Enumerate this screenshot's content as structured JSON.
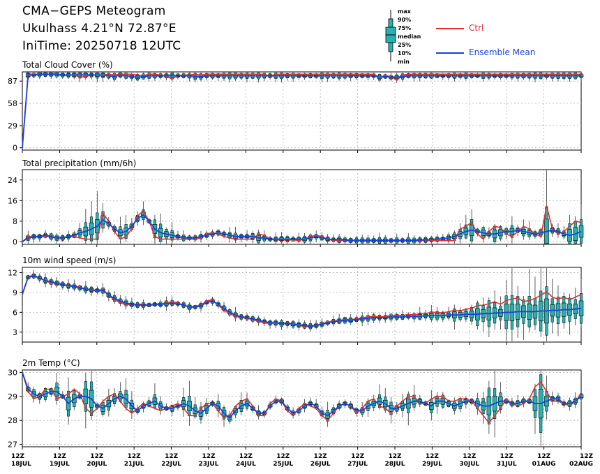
{
  "header": {
    "title": "CMA−GEPS Meteogram",
    "location": "Ukulhass  4.21°N  72.87°E",
    "init": "IniTime: 20250718 12UTC"
  },
  "legend": {
    "box_labels": [
      "max",
      "90%",
      "75%",
      "median",
      "25%",
      "10%",
      "min"
    ],
    "ctrl_label": "Ctrl",
    "mean_label": "Ensemble Mean",
    "ctrl_color": "#e03030",
    "mean_color": "#1a3fe0",
    "box_color": "#2ab0b0"
  },
  "chart_data": [
    {
      "type": "line",
      "title": "Total Cloud Cover (%)",
      "ylim": [
        -3,
        99
      ],
      "yticks": [
        "0",
        "29",
        "58",
        "87"
      ],
      "ytick_values": [
        0,
        29,
        58,
        87
      ],
      "x_ticks": [
        {
          "hour": "12Z",
          "date": "18JUL"
        },
        {
          "hour": "12Z",
          "date": "19JUL"
        },
        {
          "hour": "12Z",
          "date": "20JUL"
        },
        {
          "hour": "12Z",
          "date": "21JUL"
        },
        {
          "hour": "12Z",
          "date": "22JUL"
        },
        {
          "hour": "12Z",
          "date": "23JUL"
        },
        {
          "hour": "12Z",
          "date": "24JUL"
        },
        {
          "hour": "12Z",
          "date": "25JUL"
        },
        {
          "hour": "12Z",
          "date": "26JUL"
        },
        {
          "hour": "12Z",
          "date": "27JUL"
        },
        {
          "hour": "12Z",
          "date": "28JUL"
        },
        {
          "hour": "12Z",
          "date": "29JUL"
        },
        {
          "hour": "12Z",
          "date": "30JUL"
        },
        {
          "hour": "12Z",
          "date": "31JUL"
        },
        {
          "hour": "12Z",
          "date": "01AUG"
        },
        {
          "hour": "12Z",
          "date": "02AUG"
        }
      ],
      "series": [
        {
          "name": "Ensemble Mean",
          "values": [
            0,
            95,
            95,
            96,
            96,
            96,
            96,
            95,
            95,
            95,
            95,
            95,
            95,
            95,
            95,
            94,
            93,
            95,
            94,
            93,
            92,
            93,
            94,
            94,
            94,
            94,
            94,
            94,
            94,
            94,
            93,
            93,
            94,
            94,
            94,
            94,
            94,
            94,
            94,
            94,
            94,
            94,
            94,
            94,
            94,
            94,
            94,
            94,
            94,
            94,
            94,
            94,
            94,
            94,
            94,
            94,
            94,
            94,
            94,
            94,
            94,
            94,
            92,
            93,
            92,
            92,
            93,
            94,
            94,
            94,
            94,
            94,
            94,
            94,
            94,
            94,
            94,
            94,
            94,
            94,
            94,
            94,
            94,
            94,
            94,
            94,
            94,
            94,
            94,
            94,
            94,
            94,
            94,
            94,
            94,
            94,
            94,
            94
          ]
        },
        {
          "name": "Ctrl",
          "values": [
            0,
            96,
            96,
            96,
            96,
            96,
            96,
            95,
            95,
            95,
            92,
            93,
            95,
            95,
            95,
            96,
            95,
            96,
            96,
            96,
            95,
            94,
            96,
            96,
            95,
            93,
            90,
            94,
            95,
            95,
            96,
            95,
            96,
            96,
            96,
            96,
            96,
            96,
            96,
            96,
            96,
            96,
            96,
            93,
            96,
            96,
            96,
            96,
            96,
            96,
            96,
            96,
            96,
            96,
            96,
            96,
            96,
            96,
            96,
            96,
            96,
            96,
            92,
            94,
            93,
            88,
            95,
            96,
            96,
            96,
            96,
            96,
            96,
            96,
            96,
            96,
            96,
            96,
            96,
            96,
            96,
            96,
            96,
            96,
            96,
            96,
            96,
            96,
            96,
            96,
            96,
            96,
            96,
            96,
            96,
            96,
            96,
            96
          ]
        }
      ]
    },
    {
      "type": "line",
      "title": "Total precipitation (mm/6h)",
      "ylim": [
        -1,
        28
      ],
      "yticks": [
        "0",
        "8",
        "16",
        "24"
      ],
      "ytick_values": [
        0,
        8,
        16,
        24
      ],
      "series": [
        {
          "name": "Ensemble Mean",
          "values": [
            0,
            1.5,
            2,
            2,
            2.5,
            2,
            1.5,
            1.5,
            2,
            2.5,
            3.5,
            4,
            5,
            6,
            8.5,
            7,
            5,
            3.5,
            4,
            6,
            9,
            10.5,
            8,
            5,
            3.5,
            3,
            2.5,
            2,
            1.5,
            1.5,
            1.5,
            2,
            2.5,
            3,
            3.5,
            3,
            2.5,
            2,
            2,
            2,
            2,
            1.5,
            1.5,
            1,
            1,
            1,
            1,
            1,
            1,
            1,
            1.5,
            2,
            1.5,
            1,
            0.8,
            0.8,
            0.7,
            0.5,
            0.5,
            0.5,
            0.5,
            0.5,
            0.5,
            0.5,
            0.5,
            0.5,
            0.5,
            0.5,
            0.5,
            0.7,
            0.7,
            0.8,
            1,
            1.2,
            1.5,
            2,
            3,
            4,
            4.5,
            4,
            3.5,
            3,
            3,
            3.5,
            4,
            4,
            4.5,
            4,
            3.5,
            3,
            3.5,
            4,
            4.5,
            4,
            3,
            2.5,
            3,
            4
          ]
        },
        {
          "name": "Ctrl",
          "values": [
            0,
            2,
            2,
            2,
            2,
            2,
            1.5,
            1.5,
            2,
            2,
            1.5,
            1,
            1,
            1,
            11,
            8,
            4,
            1,
            2,
            5,
            10,
            12,
            8,
            2,
            1,
            1,
            1,
            1,
            1,
            1,
            1,
            1.5,
            3,
            3.5,
            3,
            2,
            1.5,
            1,
            1,
            1,
            1,
            3,
            2.5,
            1,
            0.8,
            0.7,
            0.7,
            0.7,
            0.5,
            1,
            2,
            2.5,
            2,
            1,
            0.5,
            0.5,
            0.5,
            0.5,
            0.5,
            0.5,
            0.5,
            0.5,
            0.5,
            0.5,
            0.5,
            0.5,
            0.5,
            0.5,
            0.5,
            0.5,
            0.5,
            0.5,
            0.5,
            0.5,
            0.5,
            0.5,
            5,
            6,
            7.5,
            3,
            1,
            4,
            6,
            5.5,
            3,
            2,
            4,
            6,
            5,
            3,
            2,
            14,
            5,
            3,
            4,
            6,
            8,
            7.5
          ]
        }
      ]
    },
    {
      "type": "line",
      "title": "10m wind speed (m/s)",
      "ylim": [
        1.5,
        12.8
      ],
      "yticks": [
        "3",
        "6",
        "9",
        "12"
      ],
      "ytick_values": [
        3,
        6,
        9,
        12
      ],
      "series": [
        {
          "name": "Ensemble Mean",
          "values": [
            8.7,
            11.3,
            11.5,
            11.2,
            10.8,
            10.6,
            10.4,
            10.2,
            10,
            9.9,
            9.7,
            9.5,
            9.4,
            9.3,
            9.3,
            8.6,
            8.1,
            7.7,
            7.4,
            7.2,
            7.1,
            7.1,
            7.1,
            7.2,
            7.2,
            7.3,
            7.4,
            7.3,
            7.1,
            6.8,
            6.8,
            7,
            7.5,
            7.7,
            7.2,
            6.6,
            6,
            5.6,
            5.3,
            5.2,
            5,
            4.8,
            4.6,
            4.4,
            4.4,
            4.3,
            4.3,
            4.2,
            4.1,
            4,
            3.9,
            4,
            4.2,
            4.4,
            4.6,
            4.7,
            4.8,
            4.8,
            4.9,
            5,
            5.1,
            5.2,
            5.2,
            5.2,
            5.3,
            5.3,
            5.3,
            5.4,
            5.4,
            5.4,
            5.5,
            5.5,
            5.5,
            5.5,
            5.6,
            5.6,
            5.6,
            5.7,
            5.7,
            5.7,
            5.8,
            5.8,
            5.9,
            5.9,
            6,
            6,
            6.1,
            6.1,
            6.1,
            6.1,
            6.2,
            6.2,
            6.3,
            6.3,
            6.4,
            6.4,
            6.5,
            6.6
          ]
        },
        {
          "name": "Ctrl",
          "values": [
            8.7,
            11.4,
            11.6,
            11.2,
            10.7,
            10.5,
            10.3,
            10.2,
            10.1,
            10,
            9.8,
            9.5,
            9.3,
            9.2,
            9.5,
            8.5,
            7.9,
            7.5,
            7.2,
            7.1,
            7.2,
            7.2,
            7,
            7.2,
            7.3,
            7.4,
            7.6,
            7.4,
            7,
            6.8,
            6.9,
            7.1,
            7.7,
            7.9,
            7.1,
            6.3,
            5.8,
            5.4,
            5.2,
            5.1,
            4.9,
            4.6,
            4.4,
            4.3,
            4.4,
            4.3,
            4.4,
            4.2,
            4,
            3.9,
            3.8,
            4,
            4.3,
            4.5,
            4.7,
            4.8,
            4.9,
            4.9,
            5,
            5.2,
            5.3,
            5.4,
            5.3,
            5.4,
            5.5,
            5.6,
            5.5,
            5.7,
            5.6,
            5.8,
            5.8,
            6,
            6,
            5.9,
            6.1,
            6.3,
            6.2,
            6.5,
            6.6,
            7,
            7.1,
            7.3,
            7.6,
            7.2,
            7.8,
            8,
            8.2,
            7.6,
            7.8,
            8.1,
            8.6,
            9.1,
            8.3,
            8,
            8.3,
            7.9,
            8.3,
            8.7
          ]
        }
      ]
    },
    {
      "type": "line",
      "title": "2m Temp (°C)",
      "ylim": [
        26.9,
        30.1
      ],
      "yticks": [
        "27",
        "28",
        "29",
        "30"
      ],
      "ytick_values": [
        27,
        28,
        29,
        30
      ],
      "series": [
        {
          "name": "Ensemble Mean",
          "values": [
            30,
            29.3,
            29.1,
            29,
            29.1,
            29.2,
            29.2,
            29,
            28.7,
            28.9,
            29,
            29,
            28.9,
            28.6,
            28.5,
            28.7,
            28.9,
            29,
            28.9,
            28.6,
            28.4,
            28.6,
            28.7,
            28.8,
            28.6,
            28.5,
            28.5,
            28.6,
            28.7,
            28.6,
            28.4,
            28.3,
            28.5,
            28.7,
            28.6,
            28.3,
            28.1,
            28.4,
            28.6,
            28.7,
            28.5,
            28.3,
            28.3,
            28.6,
            28.8,
            28.8,
            28.5,
            28.3,
            28.4,
            28.6,
            28.7,
            28.6,
            28.3,
            28.2,
            28.4,
            28.6,
            28.7,
            28.6,
            28.4,
            28.4,
            28.6,
            28.7,
            28.8,
            28.7,
            28.5,
            28.5,
            28.6,
            28.7,
            28.8,
            28.8,
            28.7,
            28.6,
            28.8,
            28.8,
            28.7,
            28.6,
            28.7,
            28.8,
            28.8,
            28.7,
            28.6,
            28.6,
            28.7,
            28.8,
            28.8,
            28.7,
            28.7,
            28.8,
            28.8,
            28.7,
            28.7,
            28.8,
            28.9,
            28.9,
            28.7,
            28.7,
            28.8,
            29
          ]
        },
        {
          "name": "Ctrl",
          "values": [
            30,
            29.2,
            28.9,
            29,
            29.3,
            29.3,
            28.9,
            29,
            29.1,
            29.3,
            29.1,
            28.5,
            28.3,
            28.5,
            28.8,
            29,
            29.1,
            28.8,
            28.5,
            28.3,
            28.5,
            28.7,
            28.6,
            28.5,
            28.4,
            28.5,
            28.6,
            28.7,
            28.5,
            28.2,
            28.2,
            28.5,
            28.7,
            28.7,
            28.4,
            28.1,
            28.2,
            28.6,
            28.8,
            28.9,
            28.6,
            28.2,
            28.2,
            28.7,
            28.9,
            28.8,
            28.4,
            28.2,
            28.5,
            28.7,
            28.6,
            28.5,
            28.2,
            28,
            28.3,
            28.6,
            28.7,
            28.6,
            28.3,
            28.5,
            28.8,
            28.9,
            28.6,
            28.5,
            28.3,
            28.6,
            28.8,
            29,
            29,
            28.7,
            28.7,
            28.9,
            29,
            29,
            28.8,
            28.8,
            28.9,
            28.9,
            28.8,
            28.5,
            28.2,
            27.9,
            28.2,
            28.5,
            28.9,
            28.7,
            28.6,
            28.7,
            28.9,
            29.4,
            29.6,
            29.2,
            28.8,
            28.8,
            28.7,
            28.6,
            28.8,
            29.1
          ]
        }
      ]
    }
  ]
}
